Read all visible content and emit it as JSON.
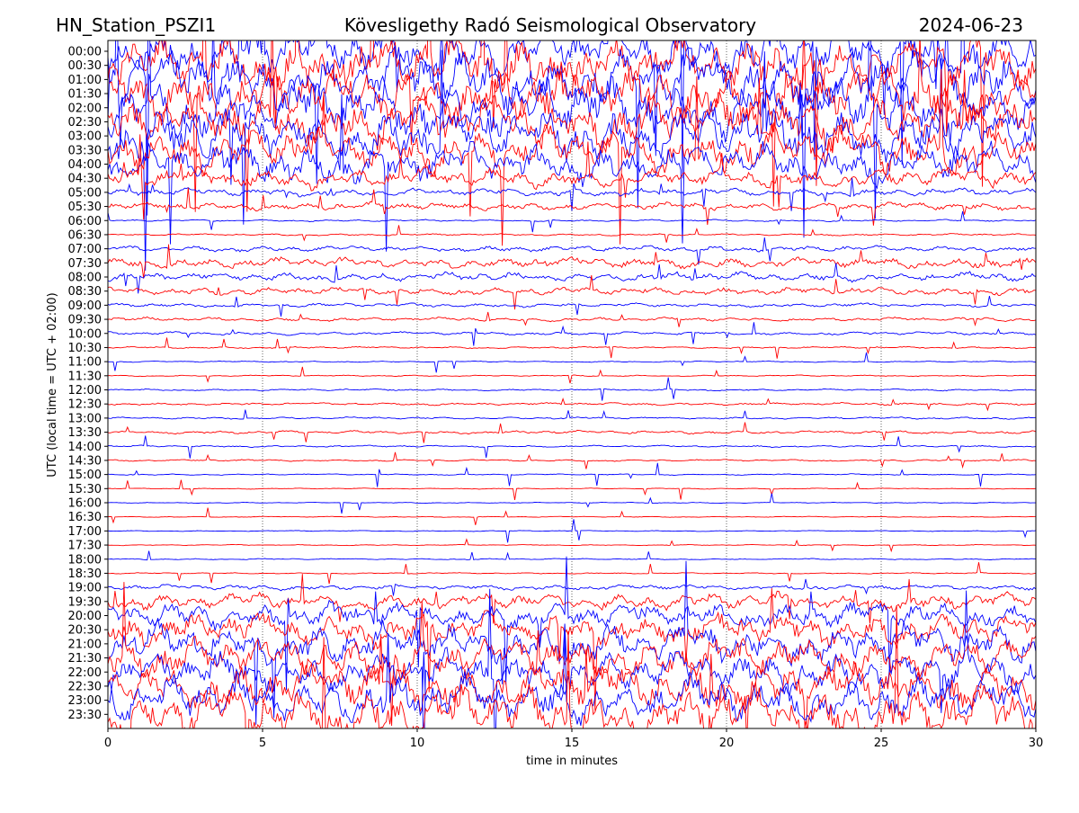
{
  "header": {
    "station": "HN_Station_PSZI1",
    "observatory": "Kövesligethy Radó Seismological Observatory",
    "date": "2024-06-23"
  },
  "chart_data": {
    "type": "line",
    "chart_kind": "helicorder",
    "xlabel": "time in minutes",
    "ylabel": "UTC (local time = UTC + 02:00)",
    "xlim": [
      0,
      30
    ],
    "x_ticks": [
      0,
      5,
      10,
      15,
      20,
      25,
      30
    ],
    "x_tick_labels": [
      "0",
      "5",
      "10",
      "15",
      "20",
      "25",
      "30"
    ],
    "vertical_grid": "dotted at 5, 10, 15, 20, 25",
    "row_colors": [
      "#0000ff",
      "#ff0000"
    ],
    "y_tick_labels": [
      "00:00",
      "00:30",
      "01:00",
      "01:30",
      "02:00",
      "02:30",
      "03:00",
      "03:30",
      "04:00",
      "04:30",
      "05:00",
      "05:30",
      "06:00",
      "06:30",
      "07:00",
      "07:30",
      "08:00",
      "08:30",
      "09:00",
      "09:30",
      "10:00",
      "10:30",
      "11:00",
      "11:30",
      "12:00",
      "12:30",
      "13:00",
      "13:30",
      "14:00",
      "14:30",
      "15:00",
      "15:30",
      "16:00",
      "16:30",
      "17:00",
      "17:30",
      "18:00",
      "18:30",
      "19:00",
      "19:30",
      "20:00",
      "20:30",
      "21:00",
      "21:30",
      "22:00",
      "22:30",
      "23:00",
      "23:30"
    ],
    "relative_amplitude": [
      8,
      9,
      9,
      9,
      9,
      8,
      8,
      7,
      6,
      3,
      1.2,
      1.2,
      0.3,
      0.3,
      0.9,
      1.6,
      1.4,
      1.2,
      0.6,
      0.6,
      0.5,
      0.3,
      0.2,
      0.2,
      0.3,
      0.4,
      0.35,
      0.5,
      0.3,
      0.3,
      0.2,
      0.15,
      0.15,
      0.15,
      0.15,
      0.15,
      0.2,
      0.2,
      0.8,
      2.5,
      4,
      5,
      6,
      6,
      6,
      7,
      7,
      8
    ]
  }
}
